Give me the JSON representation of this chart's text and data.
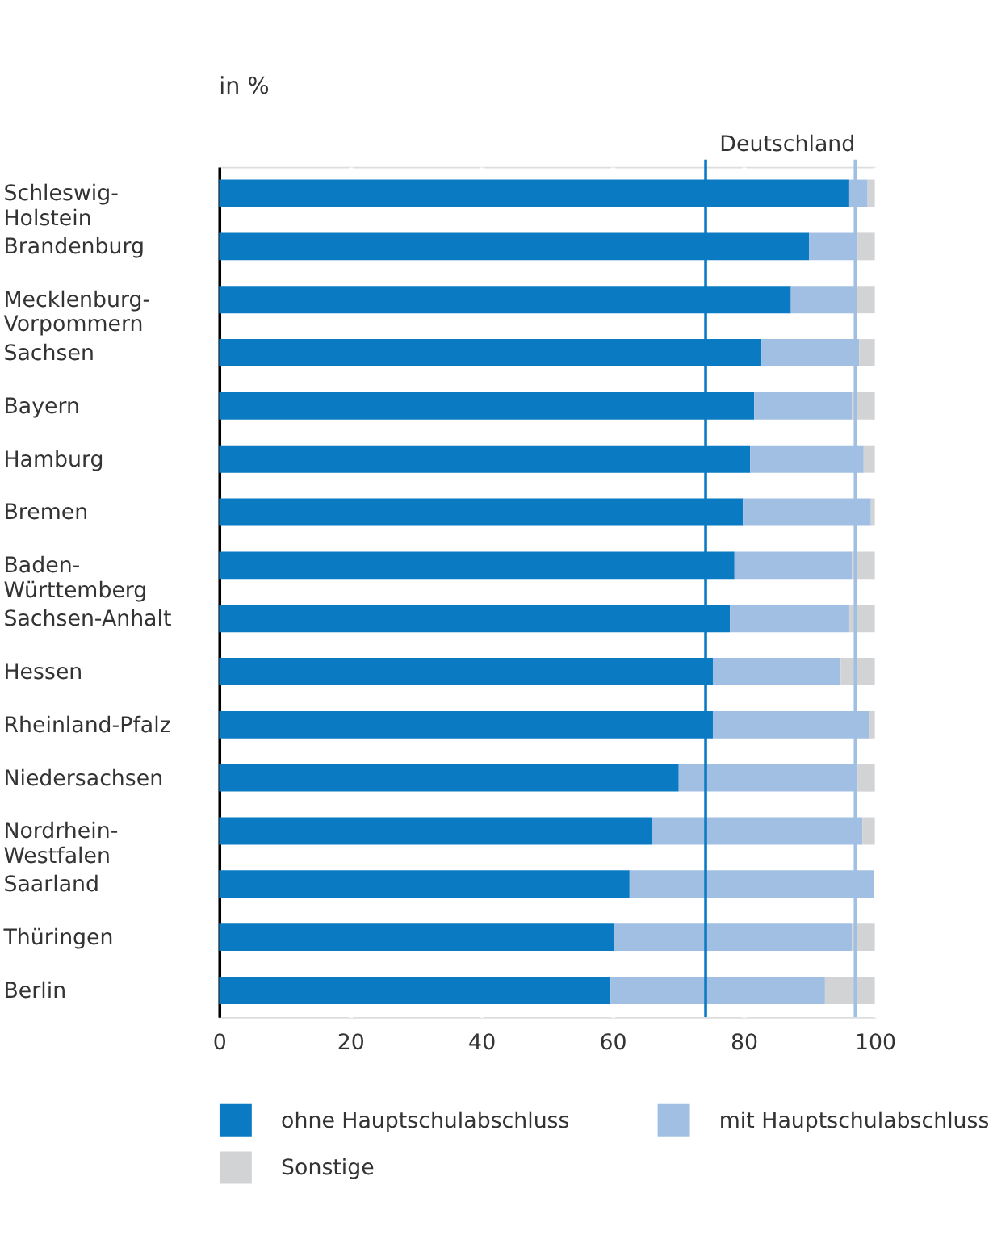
{
  "chart_data": {
    "type": "bar",
    "orientation": "horizontal",
    "stacked": true,
    "title": "in %",
    "categories": [
      "Schleswig-Holstein",
      "Brandenburg",
      "Mecklenburg-Vorpommern",
      "Sachsen",
      "Bayern",
      "Hamburg",
      "Bremen",
      "Baden-Württemberg",
      "Sachsen-Anhalt",
      "Hessen",
      "Rheinland-Pfalz",
      "Niedersachsen",
      "Nordrhein-Westfalen",
      "Saarland",
      "Thüringen",
      "Berlin"
    ],
    "series": [
      {
        "name": "ohne Hauptschulabschluss",
        "color": "#0a7bc2",
        "values": [
          96.1,
          90.0,
          87.2,
          82.7,
          81.6,
          81.0,
          79.9,
          78.6,
          77.9,
          75.3,
          75.3,
          70.1,
          66.0,
          62.6,
          60.2,
          59.7
        ]
      },
      {
        "name": "mit Hauptschulabschluss",
        "color": "#a1bfe3",
        "values": [
          2.8,
          7.4,
          10.0,
          14.9,
          14.9,
          17.3,
          19.5,
          17.9,
          18.2,
          19.5,
          23.8,
          27.3,
          32.1,
          37.2,
          36.3,
          32.7
        ]
      },
      {
        "name": "Sonstige",
        "color": "#d2d3d5",
        "values": [
          1.1,
          2.6,
          2.8,
          2.4,
          3.5,
          1.7,
          0.6,
          3.5,
          3.9,
          5.2,
          0.9,
          2.6,
          1.9,
          null,
          3.5,
          7.6
        ]
      }
    ],
    "xlim": [
      0,
      100
    ],
    "xticks": [
      0,
      20,
      40,
      60,
      80,
      100
    ],
    "grid": "x",
    "legend": "bottom",
    "ref_lines": [
      {
        "axis": "x",
        "value": 74.2,
        "color": "#0a7bc2"
      },
      {
        "axis": "x",
        "value": 97.0,
        "label": "Deutschland",
        "color": "#a1bfe3"
      }
    ]
  }
}
